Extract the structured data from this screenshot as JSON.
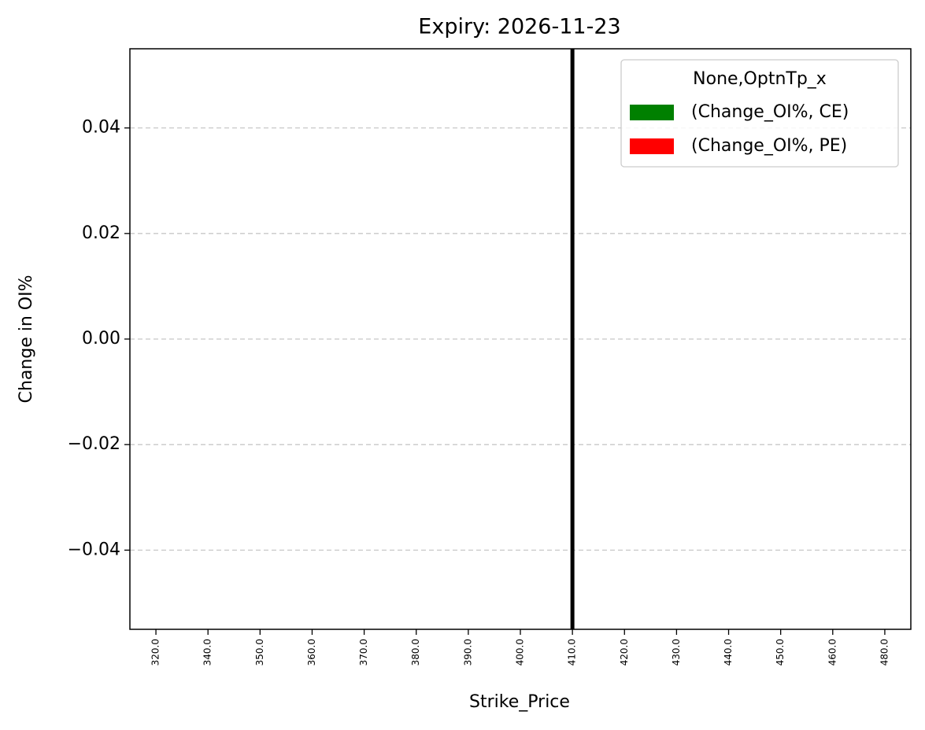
{
  "chart_data": {
    "type": "bar",
    "title": "Expiry: 2026-11-23",
    "x_label": "Strike_Price",
    "y_label": "Change in OI%",
    "categories": [
      "320.0",
      "340.0",
      "350.0",
      "360.0",
      "370.0",
      "380.0",
      "390.0",
      "400.0",
      "410.0",
      "420.0",
      "430.0",
      "440.0",
      "450.0",
      "460.0",
      "480.0"
    ],
    "series": [
      {
        "name": "(Change_OI%, CE)",
        "color": "#008000",
        "values": [
          0,
          0,
          0,
          0,
          0,
          0,
          0,
          0,
          0,
          0,
          0,
          0,
          0,
          0,
          0
        ]
      },
      {
        "name": "(Change_OI%, PE)",
        "color": "#ff0000",
        "values": [
          0,
          0,
          0,
          0,
          0,
          0,
          0,
          0,
          0,
          0,
          0,
          0,
          0,
          0,
          0
        ]
      }
    ],
    "legend_title": "None,OptnTp_x",
    "legend": "upper right",
    "vline": "410.0",
    "ylim": [
      -0.055,
      0.055
    ],
    "yticks": [
      {
        "value": -0.04,
        "label": "−0.04"
      },
      {
        "value": -0.02,
        "label": "−0.02"
      },
      {
        "value": 0,
        "label": "0.00"
      },
      0.02,
      0.04
    ],
    "grid": true
  }
}
